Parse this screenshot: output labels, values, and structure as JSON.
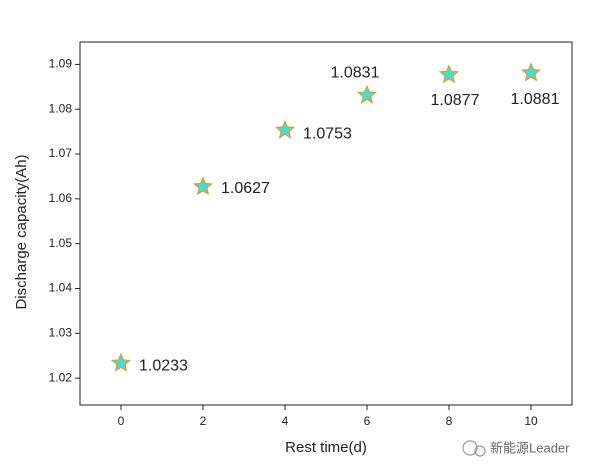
{
  "chart_data": {
    "type": "scatter",
    "x_label": "Rest time(d)",
    "y_label": "Discharge capacity(Ah)",
    "x": [
      0,
      2,
      4,
      6,
      8,
      10
    ],
    "values": [
      1.0233,
      1.0627,
      1.0753,
      1.0831,
      1.0877,
      1.0881
    ],
    "color": "#40e0d0",
    "edge_color": "#e09a3a",
    "marker": "star",
    "xlim": [
      -1,
      11
    ],
    "xticks": [
      0,
      2,
      4,
      6,
      8,
      10
    ],
    "ylim": [
      1.014,
      1.095
    ],
    "yticks": [
      1.02,
      1.03,
      1.04,
      1.05,
      1.06,
      1.07,
      1.08,
      1.09
    ],
    "grid": false
  },
  "watermark": "新能源Leader"
}
